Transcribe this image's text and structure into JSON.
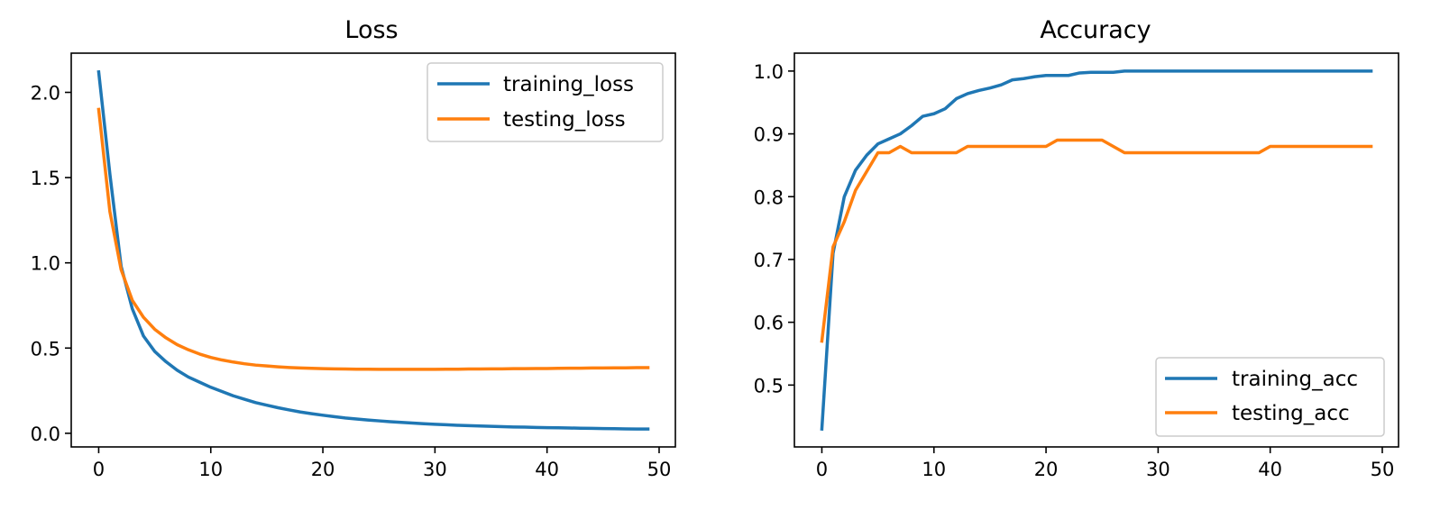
{
  "chart_data": [
    {
      "type": "line",
      "title": "Loss",
      "xlabel": "",
      "ylabel": "",
      "xlim": [
        -2.45,
        51.45
      ],
      "ylim": [
        -0.08,
        2.23
      ],
      "xticks": [
        0,
        10,
        20,
        30,
        40,
        50
      ],
      "yticks": [
        0.0,
        0.5,
        1.0,
        1.5,
        2.0
      ],
      "xtick_labels": [
        "0",
        "10",
        "20",
        "30",
        "40",
        "50"
      ],
      "ytick_labels": [
        "0.0",
        "0.5",
        "1.0",
        "1.5",
        "2.0"
      ],
      "grid": false,
      "legend": "top-right",
      "x": [
        0,
        1,
        2,
        3,
        4,
        5,
        6,
        7,
        8,
        9,
        10,
        11,
        12,
        13,
        14,
        15,
        16,
        17,
        18,
        19,
        20,
        21,
        22,
        23,
        24,
        25,
        26,
        27,
        28,
        29,
        30,
        31,
        32,
        33,
        34,
        35,
        36,
        37,
        38,
        39,
        40,
        41,
        42,
        43,
        44,
        45,
        46,
        47,
        48,
        49
      ],
      "series": [
        {
          "name": "training_loss",
          "color": "#1f77b4",
          "values": [
            2.12,
            1.52,
            0.98,
            0.73,
            0.57,
            0.48,
            0.42,
            0.37,
            0.33,
            0.3,
            0.27,
            0.245,
            0.22,
            0.2,
            0.18,
            0.165,
            0.15,
            0.137,
            0.125,
            0.115,
            0.106,
            0.098,
            0.09,
            0.084,
            0.078,
            0.073,
            0.068,
            0.064,
            0.06,
            0.056,
            0.053,
            0.05,
            0.047,
            0.045,
            0.043,
            0.041,
            0.039,
            0.037,
            0.036,
            0.034,
            0.033,
            0.032,
            0.031,
            0.03,
            0.029,
            0.028,
            0.027,
            0.026,
            0.025,
            0.025
          ]
        },
        {
          "name": "testing_loss",
          "color": "#ff7f0e",
          "values": [
            1.9,
            1.3,
            0.96,
            0.78,
            0.68,
            0.61,
            0.56,
            0.52,
            0.49,
            0.465,
            0.445,
            0.43,
            0.418,
            0.408,
            0.4,
            0.395,
            0.39,
            0.386,
            0.383,
            0.381,
            0.379,
            0.378,
            0.377,
            0.376,
            0.376,
            0.375,
            0.375,
            0.375,
            0.375,
            0.375,
            0.375,
            0.376,
            0.376,
            0.377,
            0.377,
            0.378,
            0.378,
            0.379,
            0.379,
            0.38,
            0.38,
            0.381,
            0.382,
            0.382,
            0.383,
            0.383,
            0.384,
            0.384,
            0.385,
            0.385
          ]
        }
      ]
    },
    {
      "type": "line",
      "title": "Accuracy",
      "xlabel": "",
      "ylabel": "",
      "xlim": [
        -2.45,
        51.45
      ],
      "ylim": [
        0.4015,
        1.0285
      ],
      "xticks": [
        0,
        10,
        20,
        30,
        40,
        50
      ],
      "yticks": [
        0.5,
        0.6,
        0.7,
        0.8,
        0.9,
        1.0
      ],
      "xtick_labels": [
        "0",
        "10",
        "20",
        "30",
        "40",
        "50"
      ],
      "ytick_labels": [
        "0.5",
        "0.6",
        "0.7",
        "0.8",
        "0.9",
        "1.0"
      ],
      "grid": false,
      "legend": "bottom-right",
      "x": [
        0,
        1,
        2,
        3,
        4,
        5,
        6,
        7,
        8,
        9,
        10,
        11,
        12,
        13,
        14,
        15,
        16,
        17,
        18,
        19,
        20,
        21,
        22,
        23,
        24,
        25,
        26,
        27,
        28,
        29,
        30,
        31,
        32,
        33,
        34,
        35,
        36,
        37,
        38,
        39,
        40,
        41,
        42,
        43,
        44,
        45,
        46,
        47,
        48,
        49
      ],
      "series": [
        {
          "name": "training_acc",
          "color": "#1f77b4",
          "values": [
            0.43,
            0.71,
            0.8,
            0.842,
            0.866,
            0.884,
            0.892,
            0.9,
            0.913,
            0.928,
            0.932,
            0.94,
            0.956,
            0.964,
            0.969,
            0.973,
            0.978,
            0.986,
            0.988,
            0.991,
            0.993,
            0.993,
            0.993,
            0.997,
            0.998,
            0.998,
            0.998,
            1.0,
            1.0,
            1.0,
            1.0,
            1.0,
            1.0,
            1.0,
            1.0,
            1.0,
            1.0,
            1.0,
            1.0,
            1.0,
            1.0,
            1.0,
            1.0,
            1.0,
            1.0,
            1.0,
            1.0,
            1.0,
            1.0,
            1.0
          ]
        },
        {
          "name": "testing_acc",
          "color": "#ff7f0e",
          "values": [
            0.57,
            0.72,
            0.76,
            0.81,
            0.84,
            0.87,
            0.87,
            0.88,
            0.87,
            0.87,
            0.87,
            0.87,
            0.87,
            0.88,
            0.88,
            0.88,
            0.88,
            0.88,
            0.88,
            0.88,
            0.88,
            0.89,
            0.89,
            0.89,
            0.89,
            0.89,
            0.88,
            0.87,
            0.87,
            0.87,
            0.87,
            0.87,
            0.87,
            0.87,
            0.87,
            0.87,
            0.87,
            0.87,
            0.87,
            0.87,
            0.88,
            0.88,
            0.88,
            0.88,
            0.88,
            0.88,
            0.88,
            0.88,
            0.88,
            0.88
          ]
        }
      ]
    }
  ]
}
